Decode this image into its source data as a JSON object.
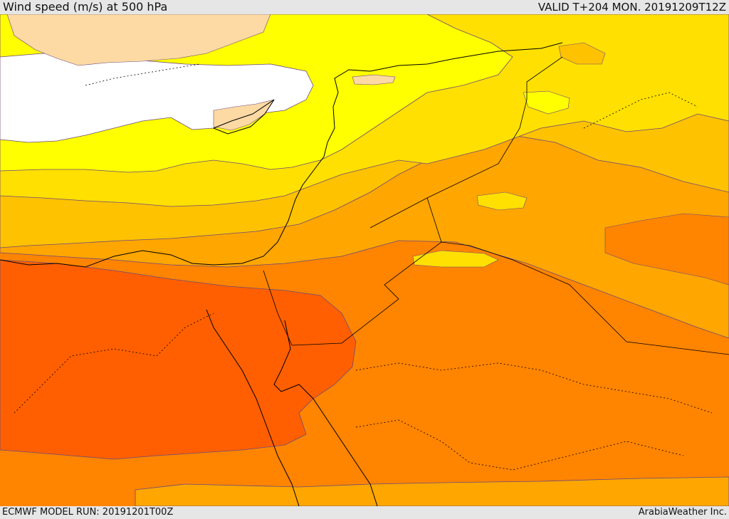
{
  "header": {
    "title": "Wind speed (m/s) at 500 hPa",
    "valid": "VALID T+204 MON. 20191209T12Z"
  },
  "footer": {
    "model_run": "ECMWF MODEL RUN: 20191201T00Z",
    "credit": "ArabiaWeather Inc."
  },
  "colors": {
    "land_light": "#fdd9a4",
    "white": "#ffffff",
    "yellow": "#ffff00",
    "gold": "#ffe000",
    "amber": "#ffc200",
    "orange_light": "#ffa600",
    "orange": "#ff8400",
    "orange_dark": "#ff5f00",
    "coast": "#000000",
    "contour": "#6b4a7a"
  }
}
